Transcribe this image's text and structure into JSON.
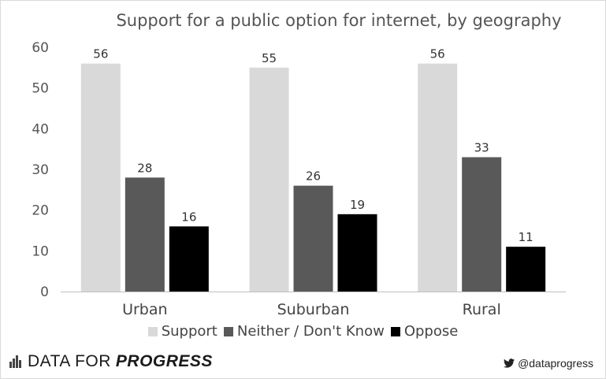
{
  "chart_data": {
    "type": "bar",
    "title": "Support for a public option for internet, by geography",
    "categories": [
      "Urban",
      "Suburban",
      "Rural"
    ],
    "series": [
      {
        "name": "Support",
        "values": [
          56,
          55,
          56
        ],
        "color": "#d9d9d9"
      },
      {
        "name": "Neither / Don't Know",
        "values": [
          28,
          26,
          33
        ],
        "color": "#595959"
      },
      {
        "name": "Oppose",
        "values": [
          16,
          19,
          11
        ],
        "color": "#000000"
      }
    ],
    "ylim": [
      0,
      60
    ],
    "yticks": [
      0,
      10,
      20,
      30,
      40,
      50,
      60
    ],
    "xlabel": "",
    "ylabel": "",
    "grid": false,
    "legend_position": "bottom"
  },
  "footer": {
    "brand_regular": "DATA FOR",
    "brand_bold": "PROGRESS",
    "handle": "@dataprogress"
  }
}
